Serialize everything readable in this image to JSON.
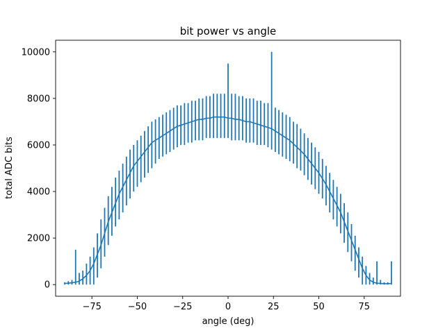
{
  "chart_data": {
    "type": "line",
    "title": "bit power vs angle",
    "xlabel": "angle (deg)",
    "ylabel": "total ADC bits",
    "xlim": [
      -95,
      95
    ],
    "ylim": [
      -500,
      10500
    ],
    "xticks": [
      -75,
      -50,
      -25,
      0,
      25,
      50,
      75
    ],
    "xtick_labels": [
      "−75",
      "−50",
      "−25",
      "0",
      "25",
      "50",
      "75"
    ],
    "yticks": [
      0,
      2000,
      4000,
      6000,
      8000,
      10000
    ],
    "ytick_labels": [
      "0",
      "2000",
      "4000",
      "6000",
      "8000",
      "10000"
    ],
    "grid": false,
    "series_color": "#1f77b4",
    "series": [
      {
        "x": [
          -90,
          -88,
          -86,
          -84,
          -82,
          -80,
          -78,
          -76,
          -74,
          -72,
          -70,
          -68,
          -66,
          -64,
          -62,
          -60,
          -58,
          -56,
          -54,
          -52,
          -50,
          -48,
          -46,
          -44,
          -42,
          -40,
          -38,
          -36,
          -34,
          -32,
          -30,
          -28,
          -26,
          -24,
          -22,
          -20,
          -18,
          -16,
          -14,
          -12,
          -10,
          -8,
          -6,
          -4,
          -2,
          0,
          2,
          4,
          6,
          8,
          10,
          12,
          14,
          16,
          18,
          20,
          22,
          24,
          26,
          28,
          30,
          32,
          34,
          36,
          38,
          40,
          42,
          44,
          46,
          48,
          50,
          52,
          54,
          56,
          58,
          60,
          62,
          64,
          66,
          68,
          70,
          72,
          74,
          76,
          78,
          80,
          82,
          84,
          86,
          88,
          90
        ],
        "y": [
          50,
          60,
          80,
          100,
          150,
          250,
          400,
          600,
          900,
          1300,
          1700,
          2200,
          2700,
          3100,
          3500,
          3900,
          4200,
          4500,
          4800,
          5100,
          5300,
          5500,
          5700,
          5900,
          6100,
          6200,
          6300,
          6400,
          6500,
          6600,
          6700,
          6800,
          6850,
          6900,
          6950,
          7000,
          7050,
          7100,
          7100,
          7150,
          7150,
          7200,
          7200,
          7200,
          7200,
          7150,
          7150,
          7100,
          7100,
          7050,
          7000,
          7000,
          6950,
          6900,
          6850,
          6800,
          6750,
          6700,
          6600,
          6500,
          6400,
          6300,
          6200,
          6050,
          5900,
          5750,
          5600,
          5400,
          5200,
          5000,
          4800,
          4550,
          4300,
          4000,
          3700,
          3400,
          3100,
          2700,
          2300,
          1900,
          1500,
          1100,
          700,
          400,
          200,
          100,
          60,
          50,
          40,
          40,
          50
        ],
        "y_min": [
          0,
          0,
          0,
          0,
          0,
          0,
          0,
          0,
          0,
          300,
          700,
          1200,
          1700,
          2100,
          2500,
          2800,
          3100,
          3400,
          3700,
          4000,
          4200,
          4400,
          4600,
          4800,
          5000,
          5200,
          5400,
          5500,
          5600,
          5700,
          5800,
          5900,
          6000,
          6000,
          6100,
          6100,
          6200,
          6200,
          6200,
          6300,
          6300,
          6300,
          6300,
          6300,
          6300,
          6300,
          6200,
          6200,
          6200,
          6200,
          6100,
          6100,
          6100,
          6000,
          6000,
          6000,
          5900,
          5800,
          5700,
          5600,
          5500,
          5400,
          5300,
          5200,
          5000,
          4900,
          4700,
          4500,
          4300,
          4100,
          3900,
          3700,
          3400,
          3100,
          2800,
          2500,
          2200,
          1800,
          1400,
          1000,
          600,
          300,
          0,
          0,
          0,
          0,
          0,
          0,
          0,
          0,
          0
        ],
        "y_max": [
          100,
          150,
          200,
          1500,
          500,
          600,
          900,
          1200,
          1600,
          2200,
          2800,
          3300,
          3800,
          4200,
          4600,
          4900,
          5200,
          5500,
          5800,
          6000,
          6200,
          6400,
          6600,
          6800,
          7000,
          7100,
          7200,
          7300,
          7400,
          7500,
          7600,
          7700,
          7700,
          7800,
          7800,
          7900,
          7900,
          8000,
          8000,
          8100,
          8100,
          8200,
          8200,
          8200,
          8200,
          9500,
          8200,
          8200,
          8100,
          8100,
          8000,
          8000,
          8000,
          7900,
          7900,
          7800,
          7800,
          10000,
          7600,
          7500,
          7400,
          7300,
          7200,
          7000,
          6900,
          6700,
          6500,
          6300,
          6100,
          5900,
          5700,
          5400,
          5100,
          4800,
          4500,
          4200,
          3900,
          3500,
          3100,
          2600,
          2100,
          1600,
          1200,
          800,
          500,
          300,
          1000,
          200,
          100,
          100,
          1000
        ]
      }
    ]
  }
}
